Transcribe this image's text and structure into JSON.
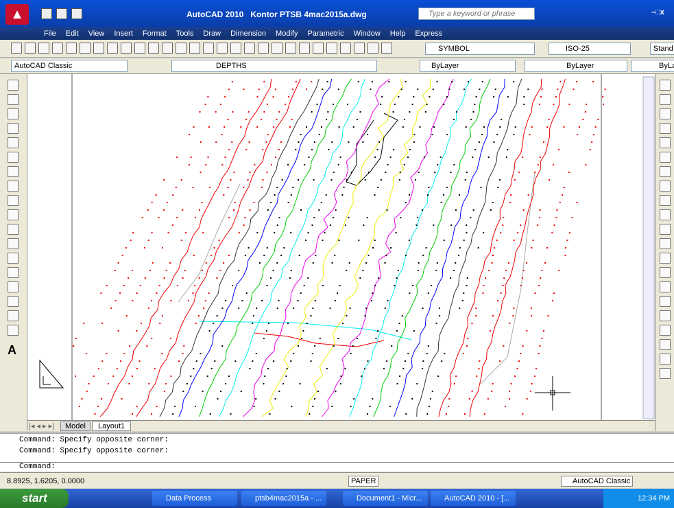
{
  "title_bar": {
    "app": "AutoCAD 2010",
    "file": "Kontor PTSB 4mac2015a.dwg",
    "search_placeholder": "Type a keyword or phrase"
  },
  "menu": [
    "File",
    "Edit",
    "View",
    "Insert",
    "Format",
    "Tools",
    "Draw",
    "Dimension",
    "Modify",
    "Parametric",
    "Window",
    "Help",
    "Express"
  ],
  "toolbar": {
    "text_style": "SYMBOL",
    "dim_style": "ISO-25",
    "table_style": "Stand"
  },
  "properties": {
    "workspace": "AutoCAD Classic",
    "layer": "DEPTHS",
    "color": "ByLayer",
    "linetype": "ByLayer",
    "lineweight": "ByLa"
  },
  "left_toolbar_text": "A",
  "tabs": [
    "Model",
    "Layout1"
  ],
  "command_history": [
    "Command: Specify opposite corner:",
    "Command: Specify opposite corner:"
  ],
  "command_prompt": "Command:",
  "status": {
    "coordinates": "8.8925, 1.6205, 0.0000",
    "space": "PAPER",
    "workspace": "AutoCAD Classic"
  },
  "taskbar": {
    "start": "start",
    "items": [
      "Data Process",
      "ptsb4mac2015a - ...",
      "Document1 - Micr...",
      "AutoCAD 2010 - [..."
    ],
    "clock": "12:34 PM"
  }
}
